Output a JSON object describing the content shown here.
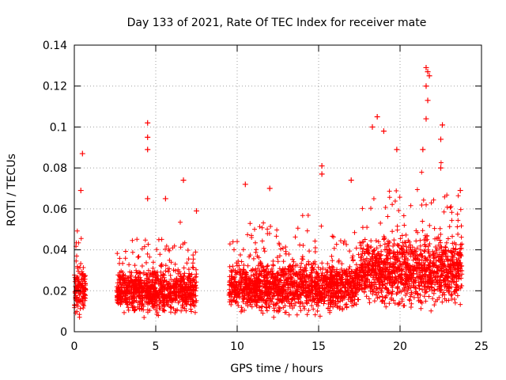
{
  "chart_data": {
    "type": "scatter",
    "title": "Day 133 of 2021, Rate Of TEC Index for receiver mate",
    "xlabel": "GPS time / hours",
    "ylabel": "ROTI / TECUs",
    "xlim": [
      0,
      25
    ],
    "ylim": [
      0,
      0.14
    ],
    "xticks": [
      0,
      5,
      10,
      15,
      20,
      25
    ],
    "xtick_labels": [
      "0",
      "5",
      "10",
      "15",
      "20",
      "25"
    ],
    "yticks": [
      0,
      0.02,
      0.04,
      0.06,
      0.08,
      0.1,
      0.12,
      0.14
    ],
    "ytick_labels": [
      "0",
      "0.02",
      "0.04",
      "0.06",
      "0.08",
      "0.1",
      "0.12",
      "0.14"
    ],
    "grid": true,
    "marker": "+",
    "color": "#ff0000",
    "data_segments": [
      {
        "x_start": 0.0,
        "x_end": 0.7,
        "base": 0.02,
        "spread": 0.015
      },
      {
        "x_start": 2.6,
        "x_end": 7.5,
        "base": 0.02,
        "spread": 0.014
      },
      {
        "x_start": 9.5,
        "x_end": 17.5,
        "base": 0.022,
        "spread": 0.016
      },
      {
        "x_start": 17.5,
        "x_end": 23.8,
        "base": 0.03,
        "spread": 0.022
      }
    ],
    "peaks": [
      {
        "x": 0.5,
        "y": 0.087
      },
      {
        "x": 0.4,
        "y": 0.069
      },
      {
        "x": 4.5,
        "y": 0.102
      },
      {
        "x": 4.5,
        "y": 0.095
      },
      {
        "x": 4.5,
        "y": 0.089
      },
      {
        "x": 4.5,
        "y": 0.065
      },
      {
        "x": 5.6,
        "y": 0.065
      },
      {
        "x": 6.7,
        "y": 0.074
      },
      {
        "x": 7.5,
        "y": 0.059
      },
      {
        "x": 10.5,
        "y": 0.072
      },
      {
        "x": 12.0,
        "y": 0.07
      },
      {
        "x": 15.2,
        "y": 0.081
      },
      {
        "x": 15.2,
        "y": 0.077
      },
      {
        "x": 17.0,
        "y": 0.074
      },
      {
        "x": 18.6,
        "y": 0.105
      },
      {
        "x": 18.3,
        "y": 0.1
      },
      {
        "x": 19.0,
        "y": 0.098
      },
      {
        "x": 19.8,
        "y": 0.089
      },
      {
        "x": 21.6,
        "y": 0.129
      },
      {
        "x": 21.7,
        "y": 0.127
      },
      {
        "x": 21.8,
        "y": 0.125
      },
      {
        "x": 21.6,
        "y": 0.12
      },
      {
        "x": 21.7,
        "y": 0.113
      },
      {
        "x": 21.6,
        "y": 0.104
      },
      {
        "x": 21.4,
        "y": 0.089
      },
      {
        "x": 22.6,
        "y": 0.101
      },
      {
        "x": 22.5,
        "y": 0.094
      },
      {
        "x": 22.5,
        "y": 0.08
      },
      {
        "x": 23.7,
        "y": 0.069
      }
    ]
  }
}
